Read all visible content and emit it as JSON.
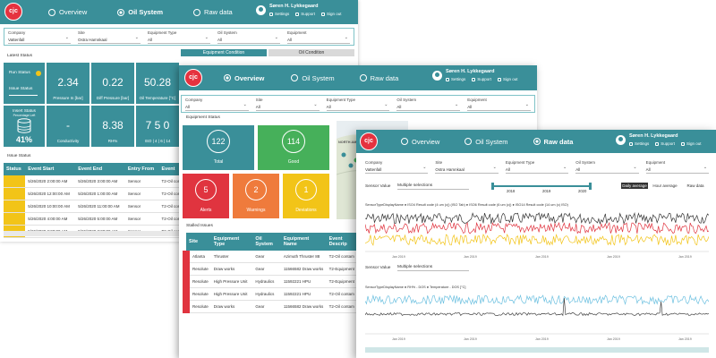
{
  "nav": {
    "overview": "Overview",
    "oil_system": "Oil System",
    "raw_data": "Raw data"
  },
  "user": {
    "name": "Søren H. Lykkegaard",
    "settings": "Settings",
    "support": "Support",
    "signout": "Sign out"
  },
  "logo_text": "cjc",
  "oil_window": {
    "filters": [
      {
        "label": "Company",
        "value": "Vattenfall"
      },
      {
        "label": "Site",
        "value": "Ostra Hamnkaal"
      },
      {
        "label": "Equipment Type",
        "value": "All"
      },
      {
        "label": "Oil System",
        "value": "All"
      },
      {
        "label": "Equipment",
        "value": "All"
      }
    ],
    "tabs": [
      "Equipment Condition",
      "Oil Condition"
    ],
    "latest_status_label": "Latest Status",
    "run_status_label": "Run Status",
    "issue_status_label": "Issue Status",
    "insert_status_label": "Insert Status",
    "insert_status_sub": "Percentage Left",
    "insert_status_value": "41%",
    "kpis": [
      {
        "value": "2.34",
        "label": "Pressure In [bar]"
      },
      {
        "value": "0.22",
        "label": "Diff Pressure [bar]"
      },
      {
        "value": "50.28",
        "label": "Oil Temperature [°C]"
      },
      {
        "value": "-",
        "label": "Conductivity"
      },
      {
        "value": "8.38",
        "label": "RH%"
      },
      {
        "value": "7 5 0",
        "label": "ISO | 4 | 6 | 14"
      }
    ],
    "issue_status_label2": "Issue Status",
    "table_headers": [
      "Status",
      "Event Start",
      "Event End",
      "Entry From",
      "Event"
    ],
    "rows": [
      {
        "start": "5/26/2020 2:00:00 AM",
        "end": "5/26/2020 3:00:00 AM",
        "from": "Sensor",
        "event": "T2-Oil contam"
      },
      {
        "start": "5/26/2020 12:00:00 AM",
        "end": "5/26/2020 1:00:00 AM",
        "from": "Sensor",
        "event": "T2-Oil contam"
      },
      {
        "start": "5/26/2020 10:00:00 AM",
        "end": "5/26/2020 11:00:00 AM",
        "from": "Sensor",
        "event": "T2-Oil contam"
      },
      {
        "start": "5/26/2020 4:00:00 AM",
        "end": "5/26/2020 5:00:00 AM",
        "from": "Sensor",
        "event": "T2-Oil contam"
      },
      {
        "start": "5/26/2020 2:00:00 AM",
        "end": "5/26/2020 3:00:00 AM",
        "from": "Sensor",
        "event": "T2-Oil contam"
      }
    ]
  },
  "overview_window": {
    "filters": [
      {
        "label": "Company",
        "value": "All"
      },
      {
        "label": "Site",
        "value": "All"
      },
      {
        "label": "Equipment Type",
        "value": "All"
      },
      {
        "label": "Oil System",
        "value": "All"
      },
      {
        "label": "Equipment",
        "value": "All"
      }
    ],
    "equipment_status_label": "Equipment Status",
    "tiles": [
      {
        "value": "122",
        "label": "Total",
        "color": "#3a8f99"
      },
      {
        "value": "114",
        "label": "Good",
        "color": "#46b05a"
      },
      {
        "value": "5",
        "label": "Alerts",
        "color": "#e0343f"
      },
      {
        "value": "2",
        "label": "Warnings",
        "color": "#ef7b3c"
      },
      {
        "value": "1",
        "label": "Deviations",
        "color": "#f2c418"
      }
    ],
    "map_label": "NORTH AMERICA",
    "stalled_issues_label": "Stalled Issues",
    "table_headers": [
      "Site",
      "Equipment Type",
      "Oil System",
      "Equipment Name",
      "Event Descrip"
    ],
    "rows": [
      {
        "site": "Atlanta",
        "type": "Thruster",
        "oil": "Gear",
        "name": "Azimuth Thruster 88",
        "event": "T2-Oil contam"
      },
      {
        "site": "Resolute",
        "type": "Draw works",
        "oil": "Gear",
        "name": "11566582 Draw works",
        "event": "T2-Equipment"
      },
      {
        "site": "Resolute",
        "type": "High Pressure Unit",
        "oil": "Hydraulics",
        "name": "11592221 HPU",
        "event": "T2-Equipment"
      },
      {
        "site": "Resolute",
        "type": "High Pressure Unit",
        "oil": "Hydraulics",
        "name": "11592221 HPU",
        "event": "T2-Oil contam"
      },
      {
        "site": "Resolute",
        "type": "Draw works",
        "oil": "Gear",
        "name": "11566582 Draw works",
        "event": "T2-Oil contam"
      }
    ]
  },
  "raw_window": {
    "filters": [
      {
        "label": "Company",
        "value": "Vattenfall"
      },
      {
        "label": "Site",
        "value": "Ostra Hamnkaal"
      },
      {
        "label": "Equipment Type",
        "value": "All"
      },
      {
        "label": "Oil System",
        "value": "All"
      },
      {
        "label": "Equipment",
        "value": "All"
      }
    ],
    "sensor_value_label": "Sensor Value",
    "sensor_select": "Multiple selections",
    "timeline_years": [
      "2018",
      "2019",
      "2020"
    ],
    "agg_buttons": [
      "Daily average",
      "Hour average",
      "Raw data"
    ],
    "chart1_legend": "SensorTypeDisplayName ● ISO4 Result code (4 um (c)) (ISO Tab) ● ISO6 Result code (6 um (c)) ● ISO14 Result code (14 um (c) ISO)",
    "chart2_legend": "SensorTypeDisplayName ● RH% - DOS ● Temperature - DOS [°C]",
    "x_labels": [
      "Jan 2019",
      "Jan 2019",
      "Jan 2019",
      "Jan 2019",
      "Jan 2019"
    ],
    "x_labels2": [
      "Jan 2019",
      "Jan 2019",
      "Jan 2019",
      "Jan 2019",
      "Jan 2019"
    ],
    "series_colors": {
      "iso4": "#333333",
      "iso6": "#e0343f",
      "iso14": "#f2c418",
      "rh": "#6cc0e0",
      "temp": "#444444"
    }
  }
}
